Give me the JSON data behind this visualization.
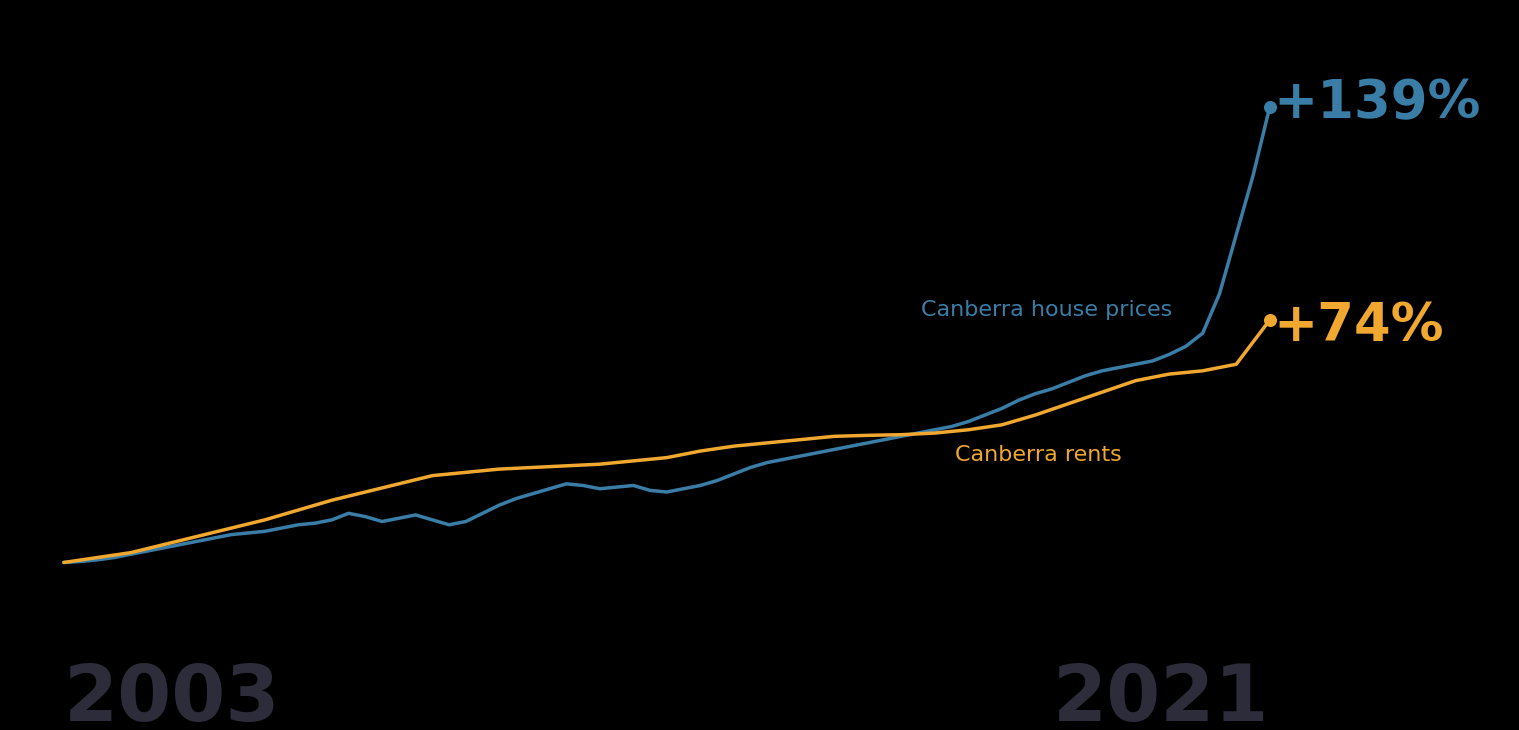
{
  "background_color": "#000000",
  "house_color": "#3a7ea8",
  "rent_color": "#f0a830",
  "house_label": "Canberra house prices",
  "rent_label": "Canberra rents",
  "house_annotation": "+139%",
  "rent_annotation": "+74%",
  "year_start": "2003",
  "year_end": "2021",
  "house_label_fontsize": 16,
  "rent_label_fontsize": 16,
  "annotation_fontsize": 38,
  "year_fontsize": 56,
  "year_color": "#2c2c3a",
  "line_width": 2.5,
  "house_years": [
    2003,
    2003.25,
    2003.5,
    2003.75,
    2004,
    2004.25,
    2004.5,
    2004.75,
    2005,
    2005.25,
    2005.5,
    2005.75,
    2006,
    2006.25,
    2006.5,
    2006.75,
    2007,
    2007.25,
    2007.5,
    2007.75,
    2008,
    2008.25,
    2008.5,
    2008.75,
    2009,
    2009.25,
    2009.5,
    2009.75,
    2010,
    2010.25,
    2010.5,
    2010.75,
    2011,
    2011.25,
    2011.5,
    2011.75,
    2012,
    2012.25,
    2012.5,
    2012.75,
    2013,
    2013.25,
    2013.5,
    2013.75,
    2014,
    2014.25,
    2014.5,
    2014.75,
    2015,
    2015.25,
    2015.5,
    2015.75,
    2016,
    2016.25,
    2016.5,
    2016.75,
    2017,
    2017.25,
    2017.5,
    2017.75,
    2018,
    2018.25,
    2018.5,
    2018.75,
    2019,
    2019.25,
    2019.5,
    2019.75,
    2020,
    2020.25,
    2020.5,
    2020.75,
    2021
  ],
  "house_values": [
    0,
    0.3,
    0.8,
    1.5,
    2.5,
    3.5,
    4.5,
    5.5,
    6.5,
    7.5,
    8.5,
    9.0,
    9.5,
    10.5,
    11.5,
    12.0,
    13.0,
    15.0,
    14.0,
    12.5,
    13.5,
    14.5,
    13.0,
    11.5,
    12.5,
    15.0,
    17.5,
    19.5,
    21.0,
    22.5,
    24.0,
    23.5,
    22.5,
    23.0,
    23.5,
    22.0,
    21.5,
    22.5,
    23.5,
    25.0,
    27.0,
    29.0,
    30.5,
    31.5,
    32.5,
    33.5,
    34.5,
    35.5,
    36.5,
    37.5,
    38.5,
    39.5,
    40.5,
    41.5,
    43.0,
    45.0,
    47.0,
    49.5,
    51.5,
    53.0,
    55.0,
    57.0,
    58.5,
    59.5,
    60.5,
    61.5,
    63.5,
    66.0,
    70.0,
    82.0,
    100.0,
    118.0,
    139.0
  ],
  "rent_years": [
    2003,
    2003.5,
    2004,
    2004.5,
    2005,
    2005.5,
    2006,
    2006.5,
    2007,
    2007.5,
    2008,
    2008.5,
    2009,
    2009.5,
    2010,
    2010.5,
    2011,
    2011.5,
    2012,
    2012.5,
    2013,
    2013.5,
    2014,
    2014.5,
    2015,
    2015.5,
    2016,
    2016.5,
    2017,
    2017.5,
    2018,
    2018.5,
    2019,
    2019.5,
    2020,
    2020.5,
    2021
  ],
  "rent_values": [
    0,
    1.5,
    3.0,
    5.5,
    8.0,
    10.5,
    13.0,
    16.0,
    19.0,
    21.5,
    24.0,
    26.5,
    27.5,
    28.5,
    29.0,
    29.5,
    30.0,
    31.0,
    32.0,
    34.0,
    35.5,
    36.5,
    37.5,
    38.5,
    38.8,
    39.0,
    39.5,
    40.5,
    42.0,
    45.0,
    48.5,
    52.0,
    55.5,
    57.5,
    58.5,
    60.5,
    74.0
  ]
}
